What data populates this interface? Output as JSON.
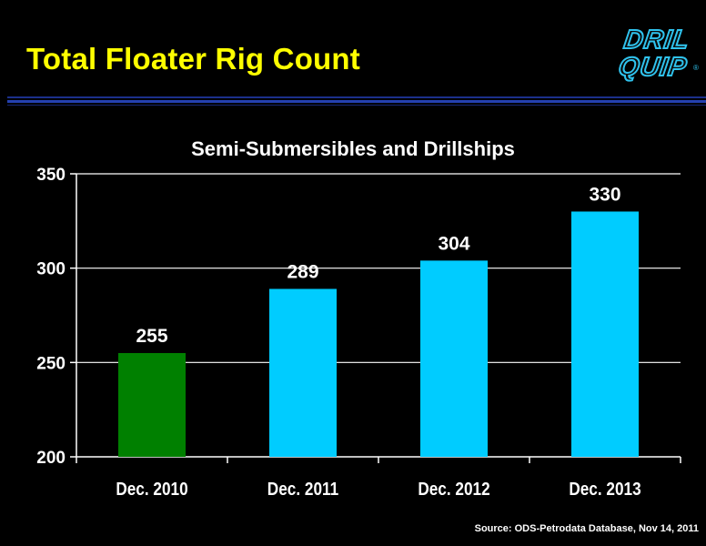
{
  "slide": {
    "title": "Total Floater Rig Count",
    "logo_line1": "DRIL",
    "logo_line2": "QUIP",
    "logo_reg": "®",
    "source": "Source:  ODS-Petrodata Database, Nov 14, 2011"
  },
  "colors": {
    "background": "#000000",
    "title": "#ffff00",
    "bar_actual": "#008000",
    "bar_forecast": "#00ccff",
    "text": "#ffffff",
    "rule": "#2440b0"
  },
  "chart_data": {
    "type": "bar",
    "title": "Semi-Submersibles and Drillships",
    "categories": [
      "Dec. 2010",
      "Dec. 2011",
      "Dec. 2012",
      "Dec. 2013"
    ],
    "values": [
      255,
      289,
      304,
      330
    ],
    "data_labels": [
      "255",
      "289",
      "304",
      "330"
    ],
    "bar_colors": [
      "#008000",
      "#00ccff",
      "#00ccff",
      "#00ccff"
    ],
    "xlabel": "",
    "ylabel": "",
    "ylim": [
      200,
      350
    ],
    "yticks": [
      200,
      250,
      300,
      350
    ],
    "grid": true,
    "legend": "none"
  }
}
